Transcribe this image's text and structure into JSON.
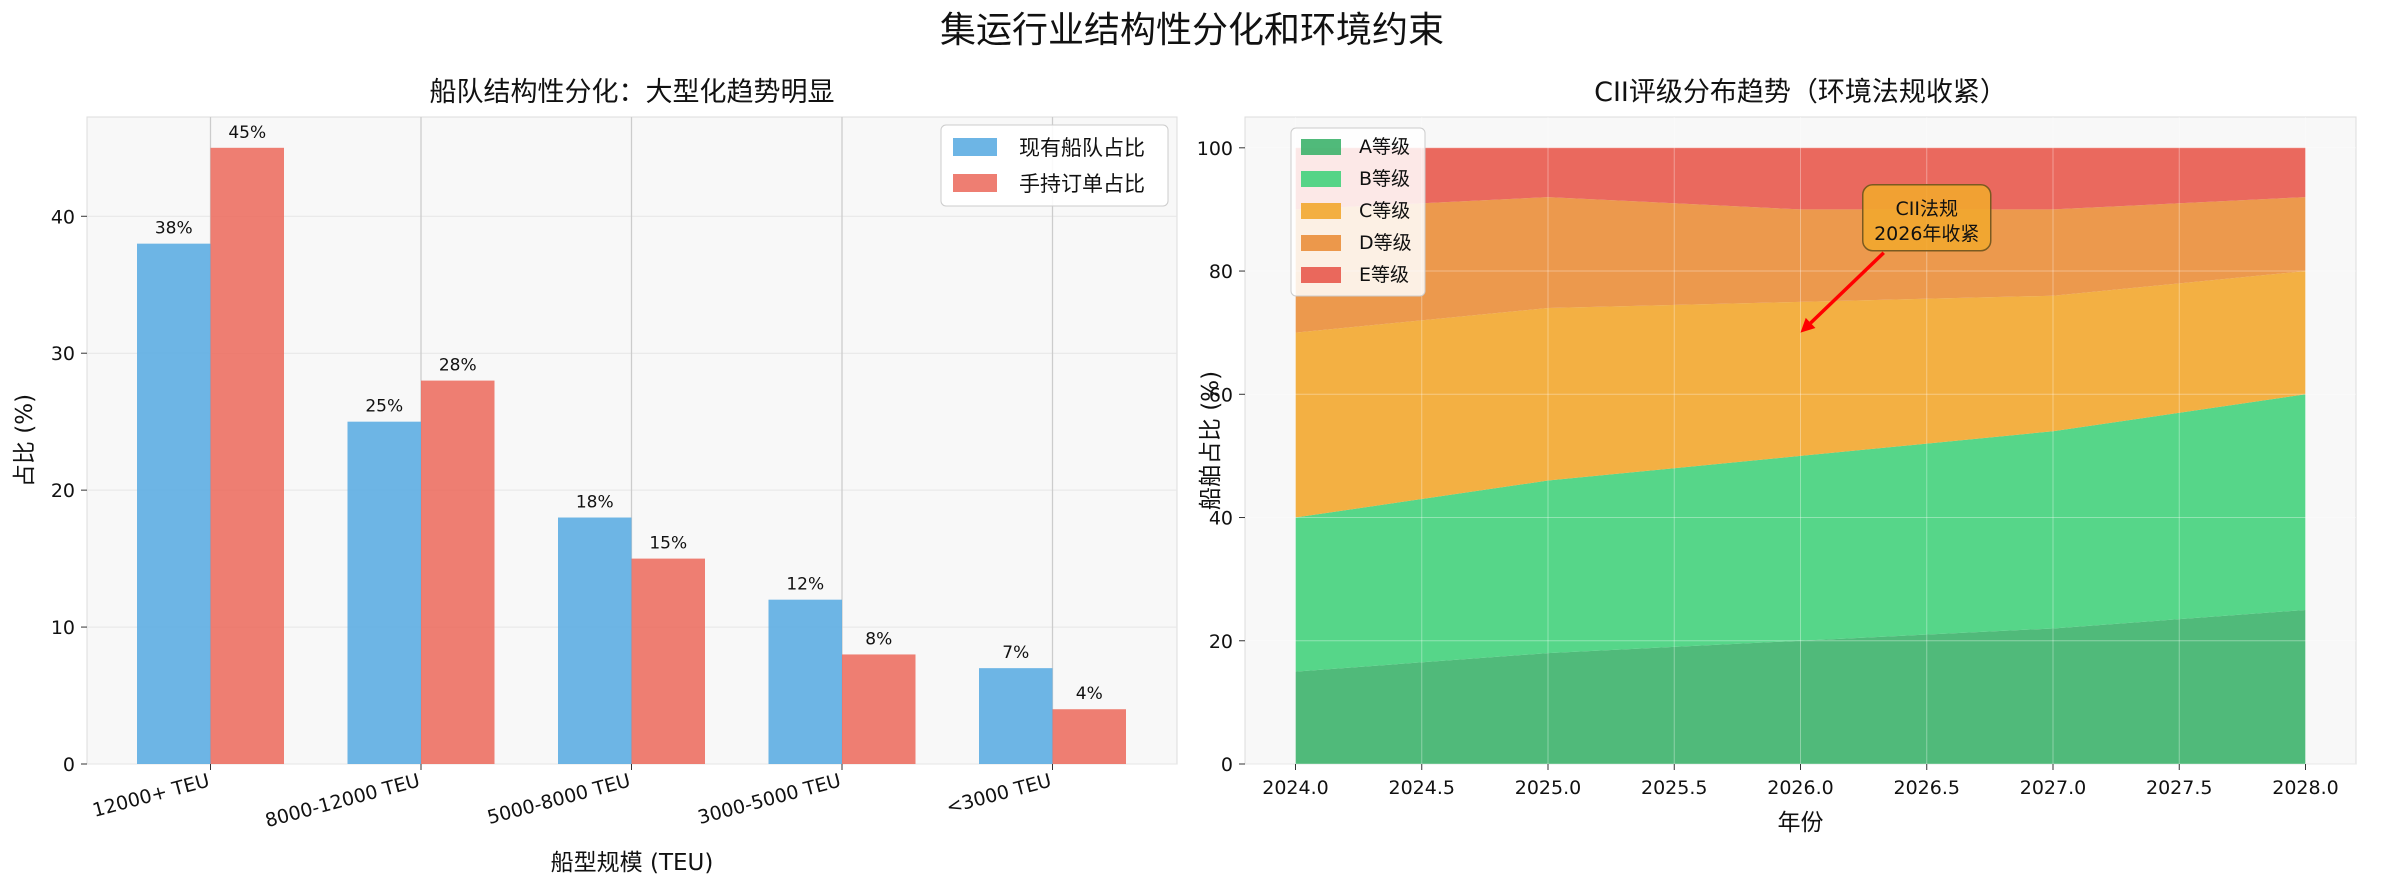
{
  "suptitle": "集运行业结构性分化和环境约束",
  "colors": {
    "series_existing": "#5DADE2",
    "series_orderbook": "#EC7063",
    "grade_a": "#3DB36B",
    "grade_b": "#44D17C",
    "grade_c": "#F2A72F",
    "grade_d": "#EA8E3A",
    "grade_e": "#E8594C",
    "panel_bg": "#F8F8F8",
    "annotation_box": "#F2A72F",
    "arrow": "#FF0000"
  },
  "chart_data": [
    {
      "type": "bar",
      "title": "船队结构性分化：大型化趋势明显",
      "xlabel": "船型规模 (TEU)",
      "ylabel": "占比 (%)",
      "categories": [
        "12000+ TEU",
        "8000-12000 TEU",
        "5000-8000 TEU",
        "3000-5000 TEU",
        "<3000 TEU"
      ],
      "series": [
        {
          "name": "现有船队占比",
          "values": [
            38,
            25,
            18,
            12,
            7
          ],
          "labels": [
            "38%",
            "25%",
            "18%",
            "12%",
            "7%"
          ]
        },
        {
          "name": "手持订单占比",
          "values": [
            45,
            28,
            15,
            8,
            4
          ],
          "labels": [
            "45%",
            "28%",
            "15%",
            "8%",
            "4%"
          ]
        }
      ],
      "ylim": [
        0,
        47.25
      ],
      "yticks": [
        0,
        10,
        20,
        30,
        40
      ],
      "ytick_labels": [
        "0",
        "10",
        "20",
        "30",
        "40"
      ],
      "legend_position": "top-right"
    },
    {
      "type": "area",
      "title": "CII评级分布趋势（环境法规收紧）",
      "xlabel": "年份",
      "ylabel": "船舶占比 (%)",
      "x": [
        2024,
        2025,
        2026,
        2027,
        2028
      ],
      "series": [
        {
          "name": "A等级",
          "values": [
            15,
            18,
            20,
            22,
            25
          ]
        },
        {
          "name": "B等级",
          "values": [
            25,
            28,
            30,
            32,
            35
          ]
        },
        {
          "name": "C等级",
          "values": [
            30,
            28,
            25,
            22,
            20
          ]
        },
        {
          "name": "D等级",
          "values": [
            20,
            18,
            15,
            14,
            12
          ]
        },
        {
          "name": "E等级",
          "values": [
            10,
            8,
            10,
            10,
            8
          ]
        }
      ],
      "xlim": [
        2023.8,
        2028.2
      ],
      "ylim": [
        0,
        105
      ],
      "xticks": [
        2024.0,
        2024.5,
        2025.0,
        2025.5,
        2026.0,
        2026.5,
        2027.0,
        2027.5,
        2028.0
      ],
      "xtick_labels": [
        "2024.0",
        "2024.5",
        "2025.0",
        "2025.5",
        "2026.0",
        "2026.5",
        "2027.0",
        "2027.5",
        "2028.0"
      ],
      "yticks": [
        0,
        20,
        40,
        60,
        80,
        100
      ],
      "ytick_labels": [
        "0",
        "20",
        "40",
        "60",
        "80",
        "100"
      ],
      "legend_position": "top-left",
      "annotation": {
        "lines": [
          "CII法规",
          "2026年收紧"
        ],
        "target": [
          2026.0,
          70
        ],
        "text_at": [
          2026.5,
          88
        ]
      }
    }
  ]
}
